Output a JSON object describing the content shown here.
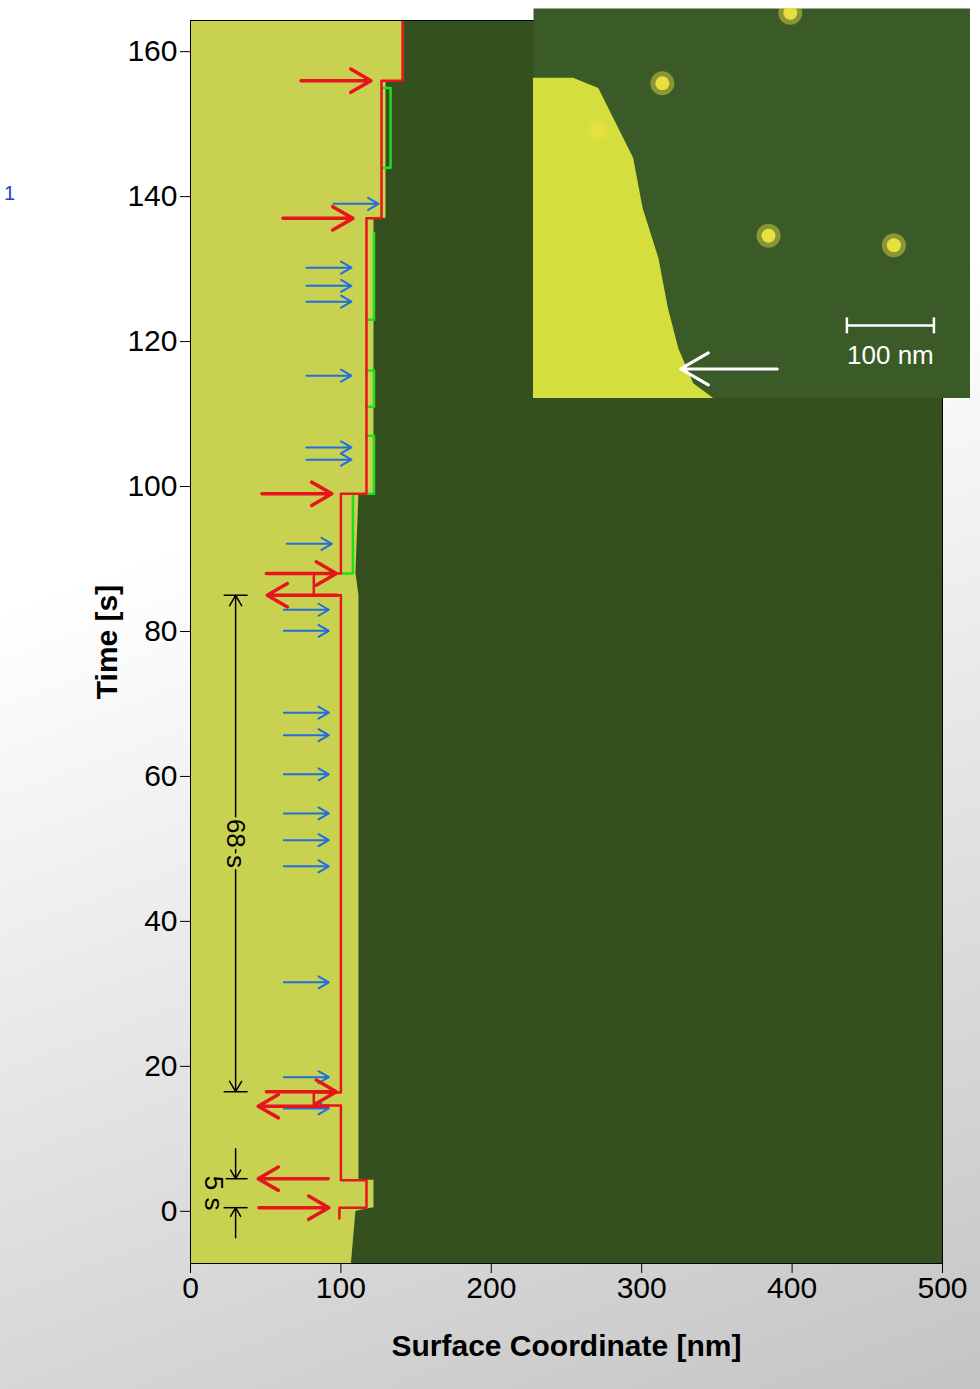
{
  "chart_data": {
    "type": "line",
    "xlabel": "Surface Coordinate [nm]",
    "ylabel": "Time [s]",
    "xlim": [
      0,
      500
    ],
    "ylim": [
      -7.2,
      164.3
    ],
    "xticks": [
      0,
      100,
      200,
      300,
      400,
      500
    ],
    "yticks": [
      0,
      20,
      40,
      60,
      80,
      100,
      120,
      140,
      160
    ],
    "page_mark": {
      "text": "1",
      "color": "#1f3fd0"
    },
    "background": {
      "color": "#34501f"
    },
    "island": {
      "color": "#c8d250",
      "x": [
        107,
        110,
        122,
        122,
        112,
        112,
        110,
        112,
        122,
        122,
        130,
        130,
        142,
        142
      ],
      "y": [
        -7.2,
        0,
        0.5,
        4.3,
        4.3,
        85,
        88,
        99,
        99,
        137,
        137,
        156,
        156,
        164.3
      ]
    },
    "series": [
      {
        "type": "line",
        "color": "#e8141c",
        "x": [
          99,
          99,
          117,
          117,
          100,
          100,
          82,
          82,
          100,
          100,
          82,
          82,
          100,
          100,
          117,
          117,
          127,
          127,
          141,
          141
        ],
        "y": [
          -1,
          0.5,
          0.5,
          4.3,
          4.3,
          14.6,
          14.6,
          16.4,
          16.4,
          85,
          85,
          88,
          88,
          99,
          99,
          137,
          137,
          156,
          156,
          164.3
        ]
      },
      {
        "type": "line",
        "color": "#22dd22",
        "x": [
          100,
          108,
          108,
          null,
          117,
          122,
          122,
          117,
          null,
          117,
          122,
          122,
          117,
          null,
          117,
          122,
          122,
          null,
          127,
          133,
          133,
          127
        ],
        "y": [
          88,
          88,
          99,
          null,
          99,
          99,
          107,
          107,
          null,
          111,
          111,
          116,
          116,
          null,
          123,
          123,
          135,
          null,
          144,
          144,
          155,
          155
        ]
      }
    ],
    "red_arrows": {
      "color": "#e8141c",
      "items": [
        {
          "y": 0.5,
          "x": 92,
          "direction": "right"
        },
        {
          "y": 4.5,
          "x": 45,
          "direction": "left"
        },
        {
          "y": 14.5,
          "x": 45,
          "direction": "left"
        },
        {
          "y": 16.5,
          "x": 97,
          "direction": "right"
        },
        {
          "y": 85,
          "x": 51,
          "direction": "left"
        },
        {
          "y": 88,
          "x": 97,
          "direction": "right"
        },
        {
          "y": 99,
          "x": 94,
          "direction": "right"
        },
        {
          "y": 137,
          "x": 108,
          "direction": "right"
        },
        {
          "y": 156,
          "x": 120,
          "direction": "right"
        }
      ]
    },
    "blue_arrows": {
      "color": "#1f6fe0",
      "y": [
        14.2,
        18.5,
        31.6,
        47.6,
        51.2,
        54.9,
        60.3,
        65.7,
        68.8,
        80.1,
        83,
        92.1,
        103.7,
        105.4,
        115.3,
        125.5,
        127.7,
        130.2,
        139
      ],
      "x": [
        92,
        92,
        92,
        92,
        92,
        92,
        92,
        92,
        92,
        92,
        92,
        94,
        107,
        107,
        107,
        107,
        107,
        107,
        125
      ]
    },
    "measures": [
      {
        "text": "68 s",
        "x": 30,
        "y1": 16.5,
        "y2": 85
      },
      {
        "text": "5 s",
        "x": 30,
        "y1": 0.5,
        "y2": 4.5
      }
    ],
    "inset": {
      "xlim": [
        0,
        502
      ],
      "ylim": [
        0,
        448
      ],
      "background": "#3a5a28",
      "region": {
        "color": "#d4de3c",
        "x": [
          0,
          46,
          75,
          92,
          115,
          126,
          144,
          155,
          167,
          184,
          207
        ],
        "y": [
          80,
          80,
          92,
          126,
          172,
          230,
          287,
          345,
          391,
          431,
          448
        ]
      },
      "particles": {
        "color": "#e8e040",
        "x": [
          295,
          74,
          148,
          270,
          414
        ],
        "y": [
          5,
          140,
          86,
          261,
          272
        ]
      },
      "scale_bar": {
        "x1": 360,
        "x2": 460,
        "y": 364,
        "label": "100 nm",
        "color": "#ffffff"
      },
      "arrow": {
        "x1": 280,
        "x2": 169,
        "y": 414,
        "color": "#ffffff"
      }
    }
  }
}
